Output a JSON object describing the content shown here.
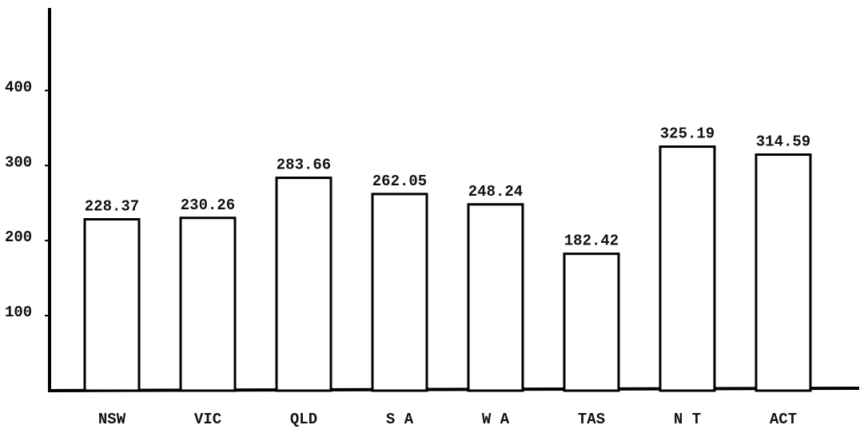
{
  "chart_data": {
    "type": "bar",
    "categories": [
      "NSW",
      "VIC",
      "QLD",
      "S A",
      "W A",
      "TAS",
      "N T",
      "ACT"
    ],
    "values": [
      228.37,
      230.26,
      283.66,
      262.05,
      248.24,
      182.42,
      325.19,
      314.59
    ],
    "color": "#ffffff",
    "ylim": [
      0,
      510
    ],
    "yticks": [
      100,
      200,
      300,
      400
    ],
    "grid": false
  }
}
